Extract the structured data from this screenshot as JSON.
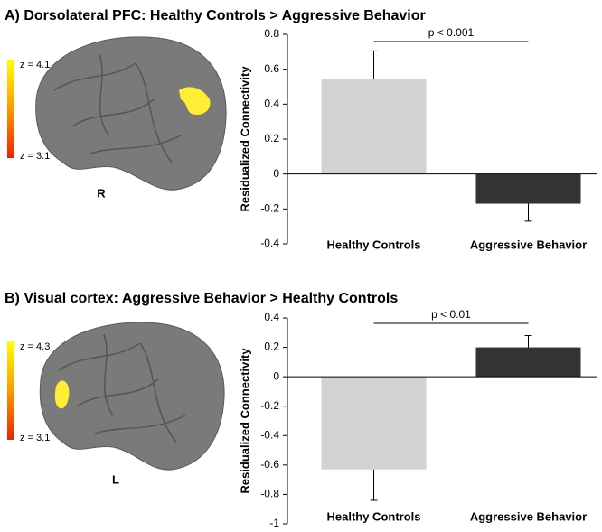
{
  "chart_data": [
    {
      "type": "bar",
      "title": "A) Dorsolateral PFC: Healthy Controls > Aggressive Behavior",
      "colorbar_labels": [
        "z = 4.1",
        "z = 3.1"
      ],
      "hemisphere": "R",
      "y_label": "Residualized Connectivity",
      "categories": [
        "Healthy Controls",
        "Aggressive Behavior"
      ],
      "values": [
        0.545,
        -0.17
      ],
      "errors": [
        0.16,
        0.1
      ],
      "colors": [
        "#d3d3d3",
        "#333333"
      ],
      "annotation": "p < 0.001",
      "ylim": [
        -0.4,
        0.8
      ],
      "yticks": [
        -0.4,
        -0.2,
        0,
        0.2,
        0.4,
        0.6,
        0.8
      ]
    },
    {
      "type": "bar",
      "title": "B) Visual cortex: Aggressive Behavior > Healthy Controls",
      "colorbar_labels": [
        "z = 4.3",
        "z = 3.1"
      ],
      "hemisphere": "L",
      "y_label": "Residualized Connectivity",
      "categories": [
        "Healthy Controls",
        "Aggressive Behavior"
      ],
      "values": [
        -0.63,
        0.2
      ],
      "errors": [
        0.21,
        0.08
      ],
      "colors": [
        "#d3d3d3",
        "#333333"
      ],
      "annotation": "p < 0.01",
      "ylim": [
        -1,
        0.4
      ],
      "yticks": [
        -1,
        -0.8,
        -0.6,
        -0.4,
        -0.2,
        0,
        0.2,
        0.4
      ]
    }
  ]
}
